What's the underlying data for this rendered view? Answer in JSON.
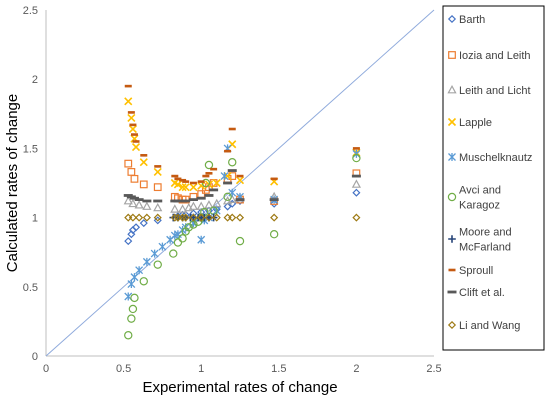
{
  "chart_data": {
    "type": "scatter",
    "title": "",
    "xlabel": "Experimental rates of change",
    "ylabel": "Calculated rates of change",
    "xlim": [
      0,
      2.5
    ],
    "ylim": [
      0,
      2.5
    ],
    "xticks": [
      "0",
      "0.5",
      "1",
      "1.5",
      "2",
      "2.5"
    ],
    "yticks": [
      "0",
      "0.5",
      "1",
      "1.5",
      "2",
      "2.5"
    ],
    "grid": false,
    "legend_position": "right",
    "reference_line": {
      "x": [
        0,
        2.5
      ],
      "y": [
        0,
        2.5
      ],
      "color": "#8FAADC"
    },
    "series": [
      {
        "name": "Barth",
        "marker": "diamond-open",
        "color": "#4472C4",
        "points": [
          [
            0.53,
            0.83
          ],
          [
            0.55,
            0.88
          ],
          [
            0.56,
            0.91
          ],
          [
            0.58,
            0.93
          ],
          [
            0.63,
            0.96
          ],
          [
            0.72,
            0.98
          ],
          [
            0.83,
            1.0
          ],
          [
            0.85,
            1.01
          ],
          [
            0.88,
            1.02
          ],
          [
            0.9,
            1.02
          ],
          [
            0.95,
            1.03
          ],
          [
            1.0,
            1.04
          ],
          [
            1.05,
            1.05
          ],
          [
            1.1,
            1.06
          ],
          [
            1.17,
            1.08
          ],
          [
            1.2,
            1.1
          ],
          [
            1.25,
            1.12
          ],
          [
            1.47,
            1.1
          ],
          [
            2.0,
            1.18
          ]
        ]
      },
      {
        "name": "Iozia and Leith",
        "marker": "square-open",
        "color": "#ED7D31",
        "points": [
          [
            0.53,
            1.39
          ],
          [
            0.55,
            1.33
          ],
          [
            0.57,
            1.28
          ],
          [
            0.63,
            1.24
          ],
          [
            0.72,
            1.22
          ],
          [
            0.83,
            1.15
          ],
          [
            0.85,
            1.14
          ],
          [
            0.88,
            1.13
          ],
          [
            0.9,
            1.13
          ],
          [
            0.95,
            1.15
          ],
          [
            1.0,
            1.17
          ],
          [
            1.03,
            1.2
          ],
          [
            1.05,
            1.22
          ],
          [
            1.08,
            1.25
          ],
          [
            1.17,
            1.28
          ],
          [
            1.2,
            1.3
          ],
          [
            1.25,
            1.13
          ],
          [
            1.47,
            1.12
          ],
          [
            2.0,
            1.32
          ]
        ]
      },
      {
        "name": "Leith and Licht",
        "marker": "triangle-open",
        "color": "#A5A5A5",
        "points": [
          [
            0.53,
            1.12
          ],
          [
            0.56,
            1.1
          ],
          [
            0.6,
            1.09
          ],
          [
            0.65,
            1.08
          ],
          [
            0.72,
            1.07
          ],
          [
            0.83,
            1.06
          ],
          [
            0.88,
            1.06
          ],
          [
            0.92,
            1.07
          ],
          [
            0.95,
            1.08
          ],
          [
            1.0,
            1.08
          ],
          [
            1.05,
            1.09
          ],
          [
            1.1,
            1.1
          ],
          [
            1.17,
            1.12
          ],
          [
            1.2,
            1.13
          ],
          [
            1.25,
            1.14
          ],
          [
            1.47,
            1.15
          ],
          [
            2.0,
            1.24
          ]
        ]
      },
      {
        "name": "Lapple",
        "marker": "x",
        "color": "#FFC000",
        "points": [
          [
            0.53,
            1.84
          ],
          [
            0.55,
            1.72
          ],
          [
            0.56,
            1.64
          ],
          [
            0.57,
            1.57
          ],
          [
            0.58,
            1.51
          ],
          [
            0.63,
            1.4
          ],
          [
            0.72,
            1.33
          ],
          [
            0.83,
            1.25
          ],
          [
            0.85,
            1.24
          ],
          [
            0.88,
            1.22
          ],
          [
            0.9,
            1.22
          ],
          [
            0.95,
            1.22
          ],
          [
            1.0,
            1.23
          ],
          [
            1.05,
            1.24
          ],
          [
            1.1,
            1.25
          ],
          [
            1.17,
            1.3
          ],
          [
            1.2,
            1.53
          ],
          [
            1.25,
            1.27
          ],
          [
            1.47,
            1.26
          ],
          [
            2.0,
            1.47
          ]
        ]
      },
      {
        "name": "Muschelknautz",
        "marker": "asterisk",
        "color": "#5B9BD5",
        "points": [
          [
            0.53,
            0.43
          ],
          [
            0.55,
            0.52
          ],
          [
            0.57,
            0.57
          ],
          [
            0.6,
            0.62
          ],
          [
            0.65,
            0.68
          ],
          [
            0.7,
            0.74
          ],
          [
            0.75,
            0.79
          ],
          [
            0.8,
            0.84
          ],
          [
            0.83,
            0.87
          ],
          [
            0.85,
            0.88
          ],
          [
            0.88,
            0.91
          ],
          [
            0.9,
            0.93
          ],
          [
            0.95,
            0.96
          ],
          [
            1.0,
            0.84
          ],
          [
            1.02,
            0.98
          ],
          [
            1.05,
            1.0
          ],
          [
            1.1,
            1.05
          ],
          [
            1.15,
            1.3
          ],
          [
            1.17,
            1.5
          ],
          [
            1.2,
            1.18
          ],
          [
            1.25,
            1.15
          ],
          [
            1.47,
            1.13
          ],
          [
            2.0,
            1.46
          ]
        ]
      },
      {
        "name": "Avci and Karagoz",
        "marker": "circle-open",
        "color": "#70AD47",
        "points": [
          [
            0.53,
            0.15
          ],
          [
            0.55,
            0.27
          ],
          [
            0.56,
            0.34
          ],
          [
            0.57,
            0.42
          ],
          [
            0.63,
            0.54
          ],
          [
            0.72,
            0.66
          ],
          [
            0.82,
            0.74
          ],
          [
            0.85,
            0.82
          ],
          [
            0.88,
            0.85
          ],
          [
            0.9,
            0.9
          ],
          [
            0.92,
            0.93
          ],
          [
            0.95,
            0.95
          ],
          [
            0.98,
            0.97
          ],
          [
            1.0,
            1.0
          ],
          [
            1.02,
            1.04
          ],
          [
            1.03,
            1.25
          ],
          [
            1.05,
            1.38
          ],
          [
            1.08,
            1.05
          ],
          [
            1.17,
            1.15
          ],
          [
            1.2,
            1.4
          ],
          [
            1.25,
            0.83
          ],
          [
            1.47,
            0.88
          ],
          [
            2.0,
            1.43
          ]
        ]
      },
      {
        "name": "Moore and McFarland",
        "marker": "plus",
        "color": "#264478",
        "points": [
          [
            0.82,
            1.0
          ],
          [
            0.85,
            1.0
          ],
          [
            0.88,
            1.0
          ],
          [
            0.9,
            1.0
          ],
          [
            0.93,
            1.0
          ],
          [
            0.95,
            1.0
          ],
          [
            0.98,
            1.0
          ],
          [
            1.0,
            1.0
          ],
          [
            1.02,
            1.0
          ],
          [
            1.05,
            1.0
          ],
          [
            1.08,
            1.0
          ]
        ]
      },
      {
        "name": "Sproull",
        "marker": "dash",
        "color": "#C55A11",
        "points": [
          [
            0.53,
            1.95
          ],
          [
            0.55,
            1.76
          ],
          [
            0.56,
            1.67
          ],
          [
            0.57,
            1.6
          ],
          [
            0.58,
            1.55
          ],
          [
            0.63,
            1.45
          ],
          [
            0.72,
            1.37
          ],
          [
            0.83,
            1.3
          ],
          [
            0.85,
            1.28
          ],
          [
            0.88,
            1.27
          ],
          [
            0.9,
            1.26
          ],
          [
            0.95,
            1.25
          ],
          [
            1.0,
            1.26
          ],
          [
            1.03,
            1.3
          ],
          [
            1.05,
            1.32
          ],
          [
            1.08,
            1.35
          ],
          [
            1.17,
            1.48
          ],
          [
            1.2,
            1.64
          ],
          [
            1.25,
            1.3
          ],
          [
            1.47,
            1.28
          ],
          [
            2.0,
            1.5
          ]
        ]
      },
      {
        "name": "Clift et al.",
        "marker": "dash-wide",
        "color": "#595959",
        "points": [
          [
            0.53,
            1.16
          ],
          [
            0.55,
            1.15
          ],
          [
            0.57,
            1.14
          ],
          [
            0.6,
            1.13
          ],
          [
            0.65,
            1.12
          ],
          [
            0.72,
            1.12
          ],
          [
            0.83,
            1.12
          ],
          [
            0.85,
            1.12
          ],
          [
            0.88,
            1.12
          ],
          [
            0.9,
            1.12
          ],
          [
            0.95,
            1.13
          ],
          [
            1.0,
            1.14
          ],
          [
            1.05,
            1.16
          ],
          [
            1.08,
            1.2
          ],
          [
            1.17,
            1.25
          ],
          [
            1.2,
            1.34
          ],
          [
            1.25,
            1.13
          ],
          [
            1.47,
            1.13
          ],
          [
            2.0,
            1.3
          ]
        ]
      },
      {
        "name": "Li and Wang",
        "marker": "diamond-open",
        "color": "#9E7A14",
        "points": [
          [
            0.53,
            1.0
          ],
          [
            0.56,
            1.0
          ],
          [
            0.6,
            1.0
          ],
          [
            0.65,
            1.0
          ],
          [
            0.72,
            1.0
          ],
          [
            0.83,
            1.0
          ],
          [
            0.85,
            1.0
          ],
          [
            0.88,
            1.0
          ],
          [
            0.9,
            1.0
          ],
          [
            0.95,
            1.0
          ],
          [
            1.0,
            1.0
          ],
          [
            1.05,
            1.0
          ],
          [
            1.1,
            1.0
          ],
          [
            1.17,
            1.0
          ],
          [
            1.2,
            1.0
          ],
          [
            1.25,
            1.0
          ],
          [
            1.47,
            1.0
          ],
          [
            2.0,
            1.0
          ]
        ]
      }
    ],
    "legend_lines": [
      [
        "Barth"
      ],
      [
        "Iozia and Leith"
      ],
      [
        "Leith and Licht"
      ],
      [
        "Lapple"
      ],
      [
        "Muschelknautz"
      ],
      [
        "Avci and",
        "Karagoz"
      ],
      [
        "Moore and",
        "McFarland"
      ],
      [
        "Sproull"
      ],
      [
        "Clift et al."
      ],
      [
        "Li and Wang"
      ]
    ]
  }
}
